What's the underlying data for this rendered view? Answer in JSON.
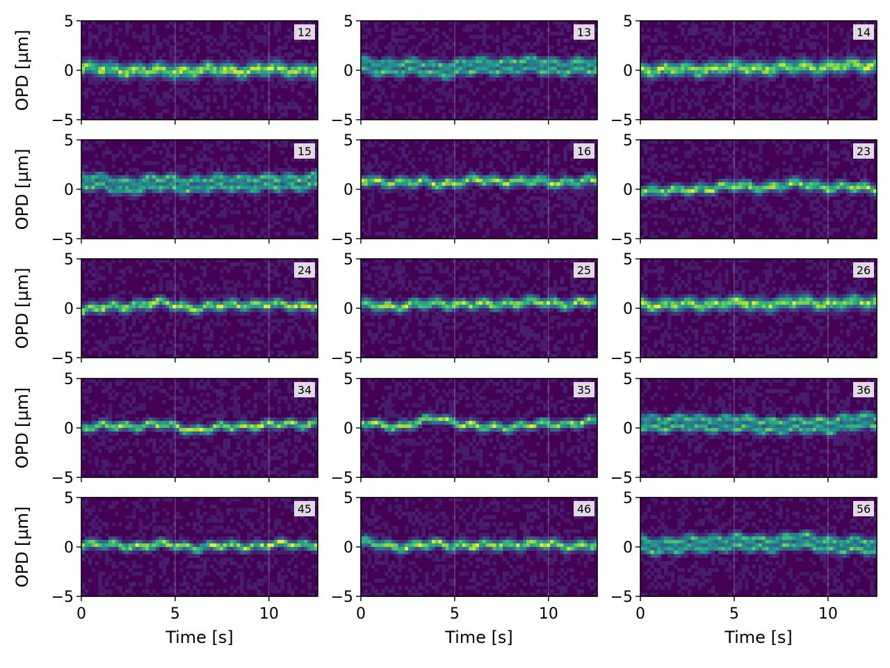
{
  "chart_data": {
    "type": "heatmap",
    "colormap": "viridis",
    "grid": true,
    "xlabel": "Time [s]",
    "ylabel": "OPD [µm]",
    "xlim": [
      0,
      12.6
    ],
    "ylim": [
      -5,
      5
    ],
    "xticks": [
      0,
      5,
      10
    ],
    "yticks": [
      -5,
      0,
      5
    ],
    "xtick_labels": [
      "0",
      "5",
      "10"
    ],
    "ytick_labels": [
      "−5",
      "0",
      "5"
    ],
    "legend_placement": "top-right",
    "panels": [
      {
        "label": "12",
        "fringes": 1,
        "center_opd": [
          0.2,
          0.0,
          -0.1,
          0.0,
          0.0,
          0.1,
          0.0
        ],
        "width": 1.1
      },
      {
        "label": "13",
        "fringes": 2,
        "center_opd": [
          0.4,
          0.3,
          0.1,
          0.4,
          0.5,
          0.4,
          0.3
        ],
        "width": 0.8
      },
      {
        "label": "14",
        "fringes": 1,
        "center_opd": [
          0.1,
          0.0,
          0.2,
          0.2,
          0.3,
          0.4,
          0.5
        ],
        "width": 1.1
      },
      {
        "label": "15",
        "fringes": 2,
        "center_opd": [
          0.8,
          0.4,
          0.6,
          0.5,
          0.7,
          0.6,
          0.9
        ],
        "width": 0.8
      },
      {
        "label": "16",
        "fringes": 1,
        "center_opd": [
          0.8,
          0.7,
          0.6,
          0.9,
          0.8,
          0.7,
          0.8
        ],
        "width": 0.8
      },
      {
        "label": "23",
        "fringes": 1,
        "center_opd": [
          0.0,
          -0.2,
          0.3,
          0.2,
          0.5,
          0.2,
          0.1
        ],
        "width": 0.8
      },
      {
        "label": "24",
        "fringes": 1,
        "center_opd": [
          -0.2,
          0.2,
          0.5,
          0.0,
          0.4,
          0.3,
          0.3
        ],
        "width": 0.8
      },
      {
        "label": "25",
        "fringes": 1,
        "center_opd": [
          0.3,
          0.2,
          0.5,
          0.3,
          0.6,
          0.5,
          0.6
        ],
        "width": 0.8
      },
      {
        "label": "26",
        "fringes": 1,
        "center_opd": [
          0.4,
          0.3,
          0.5,
          0.4,
          0.6,
          0.5,
          0.6
        ],
        "width": 1.0
      },
      {
        "label": "34",
        "fringes": 1,
        "center_opd": [
          0.1,
          0.2,
          0.3,
          -0.2,
          0.2,
          0.3,
          0.5
        ],
        "width": 0.7
      },
      {
        "label": "35",
        "fringes": 1,
        "center_opd": [
          0.4,
          0.2,
          1.0,
          0.0,
          0.2,
          0.4,
          0.6
        ],
        "width": 0.7
      },
      {
        "label": "36",
        "fringes": 2,
        "center_opd": [
          0.6,
          0.4,
          0.5,
          0.3,
          0.2,
          0.4,
          0.7
        ],
        "width": 0.8
      },
      {
        "label": "45",
        "fringes": 1,
        "center_opd": [
          0.3,
          0.1,
          0.2,
          0.0,
          0.1,
          0.2,
          0.3
        ],
        "width": 0.7
      },
      {
        "label": "46",
        "fringes": 1,
        "center_opd": [
          0.4,
          0.0,
          0.3,
          0.1,
          0.3,
          0.2,
          0.1
        ],
        "width": 0.8
      },
      {
        "label": "56",
        "fringes": 2,
        "center_opd": [
          0.2,
          0.1,
          0.5,
          0.3,
          0.6,
          0.2,
          0.0
        ],
        "width": 0.8
      }
    ]
  }
}
